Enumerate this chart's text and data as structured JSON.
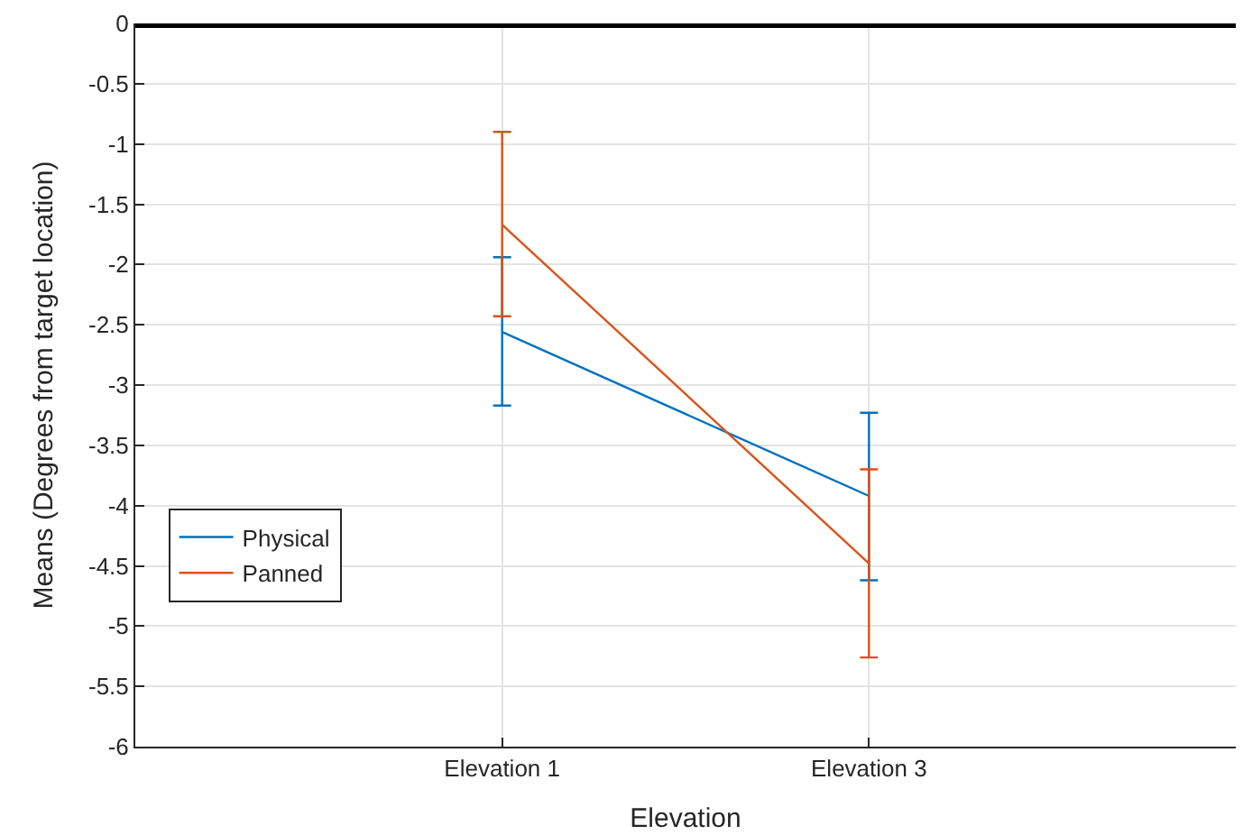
{
  "chart_data": {
    "type": "line",
    "xlabel": "Elevation",
    "ylabel": "Means (Degrees from target location)",
    "categories": [
      "Elevation 1",
      "Elevation 3"
    ],
    "series": [
      {
        "name": "Physical",
        "color": "#0072bd",
        "values": [
          -2.56,
          -3.92
        ],
        "errors": [
          [
            -3.17,
            -1.94
          ],
          [
            -4.62,
            -3.23
          ]
        ]
      },
      {
        "name": "Panned",
        "color": "#d95319",
        "values": [
          -1.67,
          -4.48
        ],
        "errors": [
          [
            -2.43,
            -0.9
          ],
          [
            -5.26,
            -3.7
          ]
        ]
      }
    ],
    "ylim": [
      -6,
      0
    ],
    "yticks": [
      -6,
      -5.5,
      -5,
      -4.5,
      -4,
      -3.5,
      -3,
      -2.5,
      -2,
      -1.5,
      -1,
      -0.5,
      0
    ],
    "ref_lines": [
      {
        "axis": "y",
        "value": 0,
        "color": "#000000"
      }
    ],
    "grid": true,
    "legend": "bottom left",
    "marker": "none",
    "line_style": "solid"
  }
}
